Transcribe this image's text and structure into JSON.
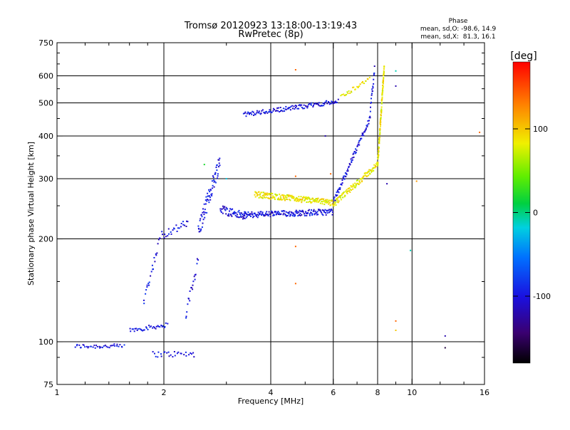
{
  "chart_data": {
    "type": "scatter",
    "title": "Tromsø 20120923 13:18:00-13:19:43",
    "subtitle": "RwPretec (8p)",
    "xlabel": "Frequency [MHz]",
    "ylabel": "Stationary phase Virtual Height [km]",
    "xscale": "log",
    "yscale": "log",
    "xlim": [
      1,
      16
    ],
    "ylim": [
      75,
      750
    ],
    "xticks": [
      1,
      2,
      4,
      6,
      8,
      10,
      16
    ],
    "xtick_labels": [
      "1",
      "2",
      "4",
      "6",
      "8",
      "10",
      "16"
    ],
    "yticks": [
      75,
      100,
      200,
      300,
      400,
      500,
      600,
      750
    ],
    "ytick_labels": [
      "75",
      "100",
      "200",
      "300",
      "400",
      "500",
      "600",
      "750"
    ],
    "grid_x": [
      2,
      4,
      6,
      8,
      10
    ],
    "grid_y": [
      100,
      200,
      300,
      400,
      500,
      600
    ],
    "grid": true,
    "legend": {
      "heading": "Phase",
      "line1": "mean, sd,O: -98.6, 14.9",
      "line2": "mean, sd,X:  81.3, 16.1",
      "placement": "top-right"
    },
    "colorbar": {
      "label": "[deg]",
      "range": [
        -180,
        180
      ],
      "ticks": [
        100,
        0,
        -100
      ],
      "tick_labels": [
        "100",
        "0",
        "-100"
      ],
      "colormap": "rainbow"
    },
    "series": [
      {
        "name": "O",
        "color_value": -100,
        "traces": [
          {
            "f0": 1.12,
            "f1": 1.55,
            "h0": 97,
            "h1": 97,
            "n": 40,
            "jit": 0.015
          },
          {
            "f0": 1.6,
            "f1": 2.05,
            "h0": 108,
            "h1": 112,
            "n": 36,
            "jit": 0.015
          },
          {
            "f0": 1.85,
            "f1": 2.45,
            "h0": 92,
            "h1": 92,
            "n": 28,
            "jit": 0.02
          },
          {
            "f0": 1.75,
            "f1": 1.95,
            "h0": 130,
            "h1": 200,
            "n": 22,
            "jit": 0.03
          },
          {
            "f0": 1.95,
            "f1": 2.35,
            "h0": 205,
            "h1": 222,
            "n": 26,
            "jit": 0.03
          },
          {
            "f0": 2.3,
            "f1": 2.5,
            "h0": 118,
            "h1": 175,
            "n": 20,
            "jit": 0.04
          },
          {
            "f0": 2.5,
            "f1": 2.88,
            "h0": 210,
            "h1": 340,
            "n": 70,
            "jit": 0.06
          },
          {
            "f0": 2.88,
            "f1": 3.4,
            "h0": 245,
            "h1": 232,
            "n": 55,
            "jit": 0.03
          },
          {
            "f0": 3.35,
            "f1": 6.0,
            "h0": 235,
            "h1": 240,
            "n": 180,
            "jit": 0.02
          },
          {
            "f0": 3.35,
            "f1": 6.2,
            "h0": 462,
            "h1": 505,
            "n": 120,
            "jit": 0.015
          },
          {
            "f0": 6.0,
            "f1": 7.6,
            "h0": 255,
            "h1": 450,
            "n": 80,
            "jit": 0.02
          },
          {
            "f0": 7.6,
            "f1": 7.85,
            "h0": 450,
            "h1": 640,
            "n": 20,
            "jit": 0.03
          }
        ]
      },
      {
        "name": "X",
        "color_value": 85,
        "traces": [
          {
            "f0": 3.6,
            "f1": 6.0,
            "h0": 270,
            "h1": 255,
            "n": 190,
            "jit": 0.02
          },
          {
            "f0": 6.0,
            "f1": 8.0,
            "h0": 252,
            "h1": 330,
            "n": 110,
            "jit": 0.02
          },
          {
            "f0": 8.0,
            "f1": 8.35,
            "h0": 330,
            "h1": 640,
            "n": 110,
            "jit": 0.03
          },
          {
            "f0": 6.3,
            "f1": 7.6,
            "h0": 520,
            "h1": 590,
            "n": 30,
            "jit": 0.015
          }
        ]
      }
    ],
    "scatter_points": [
      [
        4.7,
        625,
        140
      ],
      [
        4.7,
        305,
        140
      ],
      [
        4.7,
        190,
        140
      ],
      [
        4.7,
        148,
        140
      ],
      [
        5.9,
        310,
        140
      ],
      [
        9.0,
        115,
        140
      ],
      [
        9.0,
        108,
        100
      ],
      [
        10.3,
        295,
        120
      ],
      [
        15.5,
        410,
        140
      ],
      [
        9.9,
        185,
        -10
      ],
      [
        9.0,
        620,
        -10
      ],
      [
        12.4,
        104,
        -120
      ],
      [
        12.4,
        96,
        -160
      ],
      [
        8.5,
        290,
        -120
      ],
      [
        5.7,
        400,
        -120
      ],
      [
        9.0,
        560,
        -120
      ],
      [
        2.6,
        330,
        20
      ],
      [
        3.0,
        300,
        -20
      ]
    ]
  }
}
